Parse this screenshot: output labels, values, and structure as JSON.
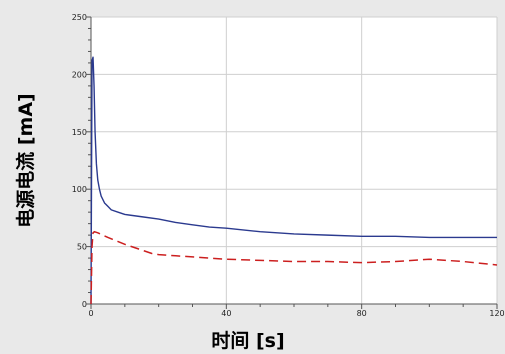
{
  "chart_data": {
    "type": "line",
    "title": "",
    "xlabel": "时间 [s]",
    "ylabel": "电源电流 [mA]",
    "xlim": [
      0,
      120
    ],
    "ylim": [
      0,
      250
    ],
    "xticks": [
      "0",
      "40",
      "80",
      "120"
    ],
    "yticks": [
      "0",
      "50",
      "100",
      "150",
      "200",
      "250"
    ],
    "grid": true,
    "legend": "none",
    "series": [
      {
        "color": "#2b3a8f",
        "style": "solid",
        "x": [
          0,
          0.3,
          0.6,
          0.9,
          1.2,
          1.6,
          2.0,
          2.5,
          3,
          4,
          5,
          6,
          8,
          10,
          15,
          20,
          25,
          30,
          35,
          40,
          50,
          60,
          70,
          80,
          90,
          100,
          110,
          120
        ],
        "y": [
          0,
          212,
          215,
          190,
          150,
          122,
          108,
          100,
          94,
          88,
          85,
          82,
          80,
          78,
          76,
          74,
          71,
          69,
          67,
          66,
          63,
          61,
          60,
          59,
          59,
          58,
          58,
          58
        ]
      },
      {
        "color": "#cc1f1f",
        "style": "dashed",
        "x": [
          0,
          0.3,
          0.6,
          1,
          2,
          5,
          10,
          15,
          18,
          20,
          25,
          30,
          35,
          40,
          50,
          60,
          70,
          80,
          90,
          100,
          110,
          120
        ],
        "y": [
          0,
          50,
          62,
          63,
          62,
          58,
          52,
          47,
          44,
          43,
          42,
          41,
          40,
          39,
          38,
          37,
          37,
          36,
          37,
          39,
          37,
          34
        ]
      }
    ]
  }
}
